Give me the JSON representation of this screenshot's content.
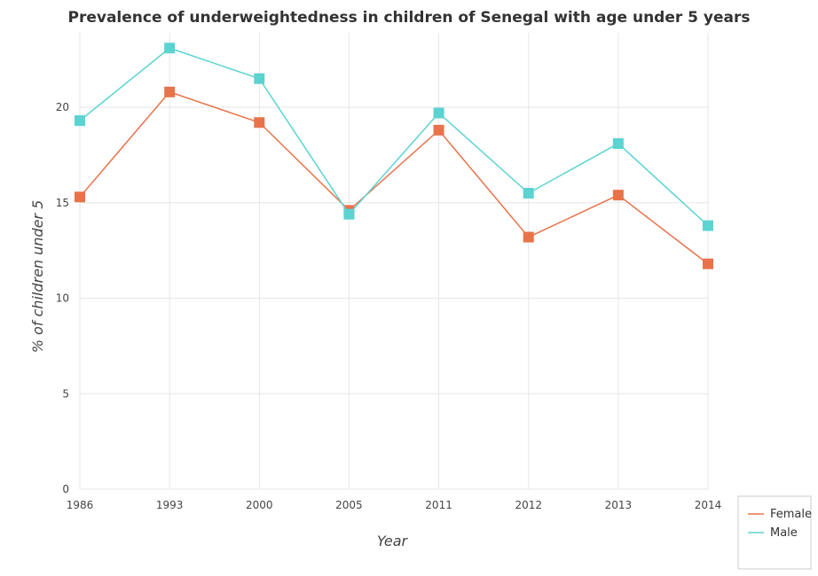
{
  "chart_data": {
    "type": "line",
    "title": "Prevalence of underweightedness in children of Senegal with age under 5 years",
    "xlabel": "Year",
    "ylabel": "% of children under 5",
    "categories": [
      "1986",
      "1993",
      "2000",
      "2005",
      "2011",
      "2012",
      "2013",
      "2014"
    ],
    "ylim": [
      0,
      23.9
    ],
    "yticks": [
      0,
      5,
      10,
      15,
      20
    ],
    "grid": true,
    "legend_position": "bottom-right",
    "series": [
      {
        "name": "Female",
        "color": "#e8734a",
        "values": [
          15.3,
          20.8,
          19.2,
          14.6,
          18.8,
          13.2,
          15.4,
          11.8
        ]
      },
      {
        "name": "Male",
        "color": "#5bd3d1",
        "values": [
          19.3,
          23.1,
          21.5,
          14.4,
          19.7,
          15.5,
          18.1,
          13.8
        ]
      }
    ]
  }
}
